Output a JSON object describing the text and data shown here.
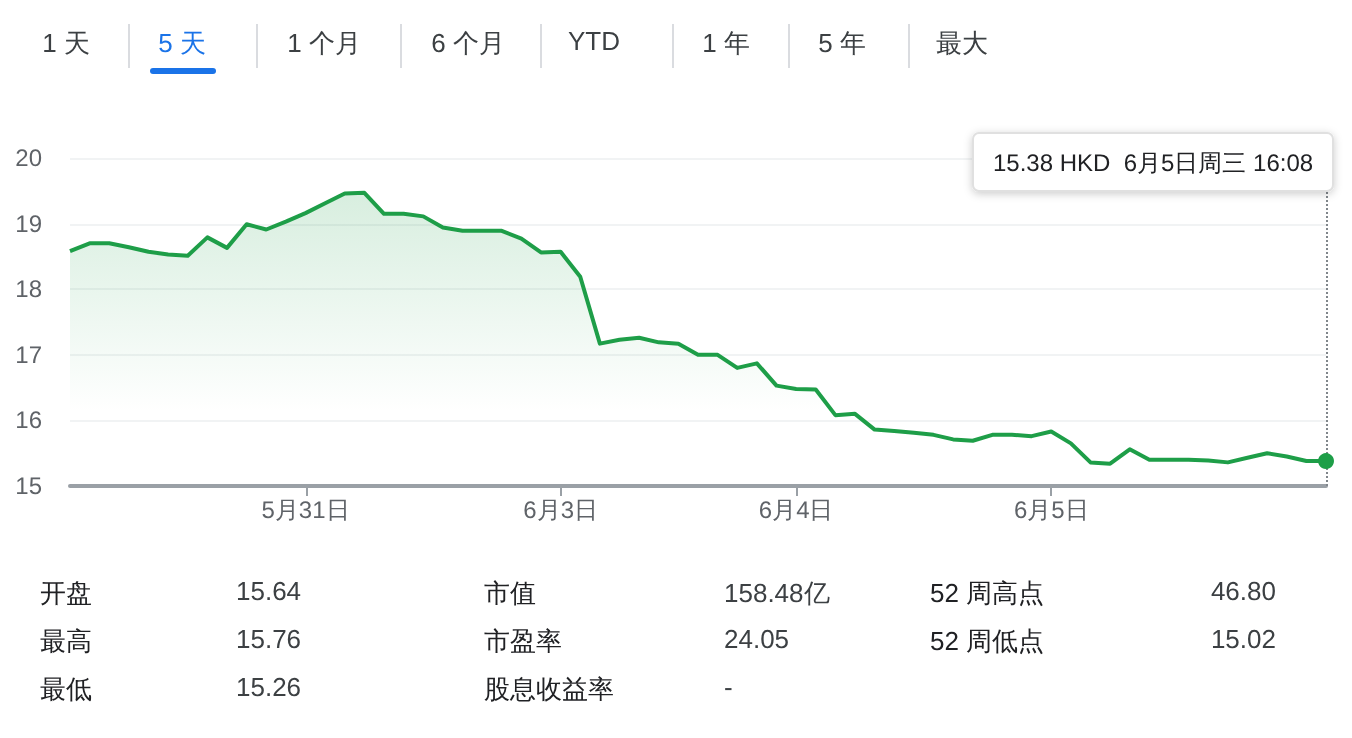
{
  "chart_data": [
    {
      "type": "other",
      "annotations": [
        "1 天",
        "5 天",
        "1 个月",
        "6 个月",
        "YTD",
        "1 年",
        "5 年",
        "最大"
      ]
    },
    {
      "type": "area",
      "color": "#1e9e48",
      "categories": [
        null,
        null,
        null,
        null,
        null,
        null,
        null,
        null,
        null,
        null,
        null,
        null,
        "5月31日",
        null,
        null,
        null,
        null,
        null,
        null,
        null,
        null,
        null,
        null,
        null,
        null,
        "6月3日",
        null,
        null,
        null,
        null,
        null,
        null,
        null,
        null,
        null,
        null,
        null,
        "6月4日",
        null,
        null,
        null,
        null,
        null,
        null,
        null,
        null,
        null,
        null,
        null,
        null,
        "6月5日",
        null,
        null,
        null,
        null,
        null,
        null,
        null,
        null,
        null,
        null,
        null,
        null,
        null,
        null
      ],
      "values": [
        18.58,
        18.7,
        18.7,
        18.64,
        18.57,
        18.53,
        18.51,
        18.79,
        18.63,
        18.99,
        18.91,
        19.03,
        19.16,
        19.31,
        19.46,
        19.47,
        19.15,
        19.15,
        19.11,
        18.94,
        18.89,
        18.89,
        18.89,
        18.77,
        18.56,
        18.57,
        18.19,
        17.17,
        17.23,
        17.26,
        17.19,
        17.17,
        17.0,
        17.0,
        16.8,
        16.87,
        16.53,
        16.48,
        16.47,
        16.08,
        16.1,
        15.86,
        15.84,
        15.81,
        15.78,
        15.71,
        15.69,
        15.78,
        15.78,
        15.76,
        15.83,
        15.65,
        15.36,
        15.34,
        15.56,
        15.4,
        15.4,
        15.4,
        15.39,
        15.36,
        15.43,
        15.5,
        15.45,
        15.38,
        15.38
      ],
      "ylim": [
        15,
        20
      ],
      "yticks": [
        15,
        16,
        17,
        18,
        19,
        20
      ],
      "grid": "y",
      "annotations": [
        "15.38 HKD  6月5日周三 16:08"
      ]
    },
    {
      "type": "other",
      "annotations": [
        "开盘",
        "15.64",
        "市值",
        "158.48亿",
        "52 周高点",
        "46.80",
        "最高",
        "15.76",
        "市盈率",
        "24.05",
        "52 周低点",
        "15.02",
        "最低",
        "15.26",
        "股息收益率",
        "-"
      ]
    }
  ]
}
